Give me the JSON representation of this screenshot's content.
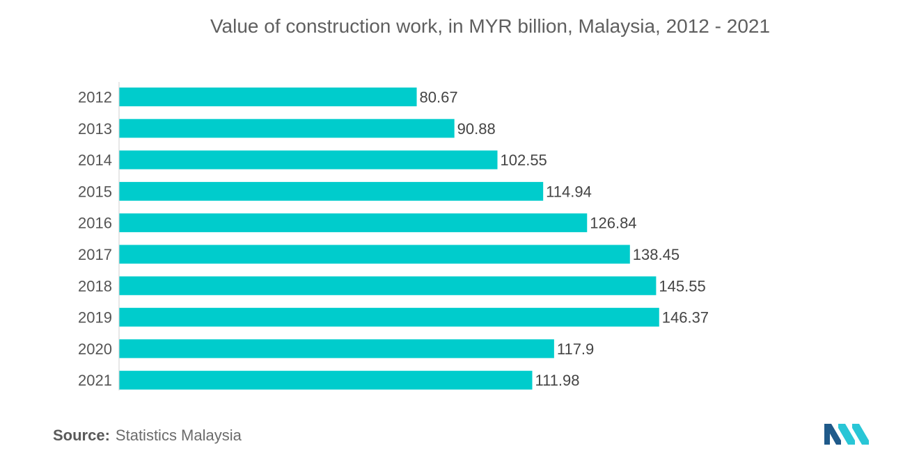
{
  "chart_data": {
    "type": "bar",
    "orientation": "horizontal",
    "title": "Value of construction work, in  MYR billion, Malaysia, 2012 - 2021",
    "categories": [
      "2012",
      "2013",
      "2014",
      "2015",
      "2016",
      "2017",
      "2018",
      "2019",
      "2020",
      "2021"
    ],
    "values": [
      80.67,
      90.88,
      102.55,
      114.94,
      126.84,
      138.45,
      145.55,
      146.37,
      117.9,
      111.98
    ],
    "value_labels": [
      "80.67",
      "90.88",
      "102.55",
      "114.94",
      "126.84",
      "138.45",
      "145.55",
      "146.37",
      "117.9",
      "111.98"
    ],
    "xlabel": "",
    "ylabel": "",
    "grid": false,
    "bar_color": "#00cccc"
  },
  "source": {
    "label": "Source:",
    "text": "Statistics Malaysia"
  },
  "logo": {
    "icon": "mordor-intelligence-logo-icon",
    "colors": [
      "#1f5a8a",
      "#29c6d6"
    ]
  }
}
